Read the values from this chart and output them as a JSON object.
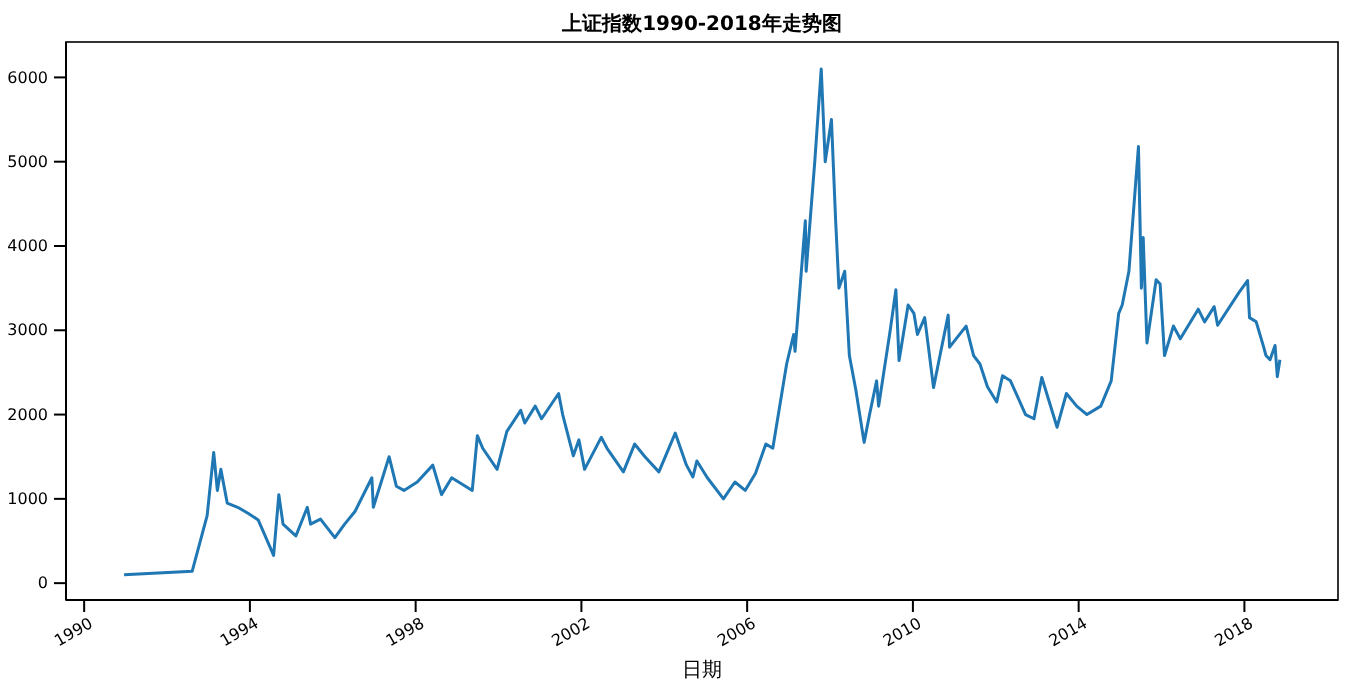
{
  "chart_data": {
    "type": "line",
    "title": "上证指数1990-2018年走势图",
    "xlabel": "日期",
    "xlim": [
      "1989-07-25",
      "2020-04-05"
    ],
    "ylim": [
      -200,
      6420
    ],
    "xticks": [
      {
        "value": "1990",
        "label": "1990"
      },
      {
        "value": "1994",
        "label": "1994"
      },
      {
        "value": "1998",
        "label": "1998"
      },
      {
        "value": "2002",
        "label": "2002"
      },
      {
        "value": "2006",
        "label": "2006"
      },
      {
        "value": "2010",
        "label": "2010"
      },
      {
        "value": "2014",
        "label": "2014"
      },
      {
        "value": "2018",
        "label": "2018"
      }
    ],
    "yticks": [
      0,
      1000,
      2000,
      3000,
      4000,
      5000,
      6000
    ],
    "grid": false,
    "marker": "none",
    "line_style": "solid",
    "x": [
      "1990-12-19",
      "1992-08-10",
      "1992-12-20",
      "1993-02-16",
      "1993-03-20",
      "1993-04-20",
      "1993-06-15",
      "1993-09-15",
      "1993-12-15",
      "1994-03-15",
      "1994-07-29",
      "1994-09-13",
      "1994-10-20",
      "1995-02-10",
      "1995-05-22",
      "1995-06-20",
      "1995-09-15",
      "1996-01-20",
      "1996-04-15",
      "1996-07-15",
      "1996-12-11",
      "1996-12-24",
      "1997-05-12",
      "1997-07-15",
      "1997-09-20",
      "1998-01-15",
      "1998-06-01",
      "1998-08-17",
      "1998-11-15",
      "1999-05-15",
      "1999-06-29",
      "1999-08-15",
      "1999-12-20",
      "2000-03-15",
      "2000-07-15",
      "2000-08-20",
      "2000-11-20",
      "2001-01-15",
      "2001-06-14",
      "2001-07-20",
      "2001-10-22",
      "2001-12-10",
      "2002-01-29",
      "2002-06-25",
      "2002-08-15",
      "2003-01-06",
      "2003-04-15",
      "2003-07-15",
      "2003-11-15",
      "2004-04-07",
      "2004-07-15",
      "2004-09-10",
      "2004-10-15",
      "2005-01-15",
      "2005-06-06",
      "2005-09-15",
      "2005-12-15",
      "2006-03-15",
      "2006-06-15",
      "2006-08-15",
      "2006-12-15",
      "2007-02-15",
      "2007-02-27",
      "2007-05-29",
      "2007-06-05",
      "2007-08-20",
      "2007-10-16",
      "2007-11-20",
      "2008-01-14",
      "2008-02-20",
      "2008-03-20",
      "2008-05-10",
      "2008-06-20",
      "2008-08-15",
      "2008-10-28",
      "2008-12-15",
      "2009-02-15",
      "2009-03-05",
      "2009-06-15",
      "2009-08-04",
      "2009-09-01",
      "2009-11-20",
      "2010-01-10",
      "2010-02-10",
      "2010-04-15",
      "2010-07-02",
      "2010-08-20",
      "2010-11-08",
      "2010-11-20",
      "2011-04-15",
      "2011-06-20",
      "2011-08-15",
      "2011-10-20",
      "2012-01-10",
      "2012-03-01",
      "2012-05-10",
      "2012-09-20",
      "2012-12-03",
      "2013-02-10",
      "2013-06-25",
      "2013-09-15",
      "2013-12-15",
      "2014-03-15",
      "2014-07-15",
      "2014-10-15",
      "2014-12-20",
      "2015-01-20",
      "2015-03-20",
      "2015-06-12",
      "2015-07-08",
      "2015-07-24",
      "2015-08-26",
      "2015-11-15",
      "2015-12-20",
      "2016-01-28",
      "2016-04-15",
      "2016-06-15",
      "2016-11-20",
      "2017-01-15",
      "2017-04-10",
      "2017-05-10",
      "2017-11-15",
      "2018-01-29",
      "2018-02-15",
      "2018-04-15",
      "2018-06-20",
      "2018-07-10",
      "2018-08-15",
      "2018-09-28",
      "2018-10-18",
      "2018-11-10"
    ],
    "series": [
      {
        "color": "#1f77b4",
        "values": [
          100,
          140,
          800,
          1550,
          1100,
          1350,
          950,
          900,
          830,
          750,
          330,
          1050,
          700,
          560,
          900,
          700,
          760,
          540,
          700,
          850,
          1250,
          900,
          1500,
          1150,
          1100,
          1200,
          1400,
          1050,
          1250,
          1100,
          1750,
          1600,
          1350,
          1800,
          2050,
          1900,
          2100,
          1950,
          2250,
          2000,
          1510,
          1700,
          1350,
          1730,
          1600,
          1320,
          1650,
          1500,
          1320,
          1780,
          1400,
          1260,
          1450,
          1250,
          1000,
          1200,
          1100,
          1300,
          1650,
          1600,
          2600,
          2950,
          2750,
          4300,
          3700,
          5000,
          6100,
          5000,
          5500,
          4300,
          3500,
          3700,
          2700,
          2300,
          1670,
          2000,
          2400,
          2100,
          3000,
          3480,
          2640,
          3300,
          3200,
          2950,
          3150,
          2320,
          2650,
          3180,
          2800,
          3050,
          2700,
          2600,
          2330,
          2150,
          2460,
          2400,
          2000,
          1950,
          2440,
          1850,
          2250,
          2100,
          2000,
          2100,
          2400,
          3200,
          3300,
          3700,
          5180,
          3500,
          4100,
          2850,
          3600,
          3550,
          2700,
          3050,
          2900,
          3250,
          3100,
          3280,
          3060,
          3450,
          3590,
          3150,
          3100,
          2800,
          2700,
          2650,
          2820,
          2450,
          2650
        ]
      }
    ]
  }
}
